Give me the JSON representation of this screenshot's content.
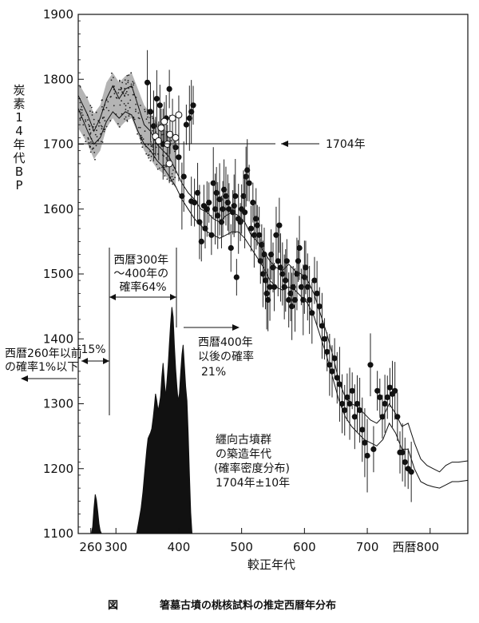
{
  "chart_data": {
    "type": "scatter",
    "caption": {
      "label": "図",
      "text": "箸墓古墳の桃核試料の推定西暦年分布"
    },
    "ylabel": "炭素14年代BP",
    "xlabel": "較正年代",
    "x_ticks": [
      "260",
      "300",
      "400",
      "500",
      "600",
      "700",
      "西暦800"
    ],
    "y_ticks": [
      "1100",
      "1200",
      "1300",
      "1400",
      "1500",
      "1600",
      "1700",
      "1800",
      "1900"
    ],
    "xlim": [
      240,
      860
    ],
    "ylim": [
      1100,
      1900
    ],
    "reference_line": {
      "y": 1704,
      "label": "1704年"
    },
    "annotations": {
      "interval_300_400": [
        "西暦300年",
        "～400年の",
        "確率64%"
      ],
      "before_260": [
        "西暦260年以前",
        "の確率1%以下"
      ],
      "pct_15": "15%",
      "after_400": [
        "西暦400年",
        "以後の確率",
        "21%"
      ],
      "density_title": [
        "纒向古墳群",
        "の築造年代",
        "(確率密度分布)",
        "1704年±10年"
      ]
    },
    "calibration_curve_upper": [
      [
        240,
        1775
      ],
      [
        255,
        1745
      ],
      [
        265,
        1720
      ],
      [
        275,
        1740
      ],
      [
        285,
        1770
      ],
      [
        295,
        1790
      ],
      [
        305,
        1770
      ],
      [
        315,
        1785
      ],
      [
        325,
        1790
      ],
      [
        335,
        1760
      ],
      [
        345,
        1730
      ],
      [
        355,
        1720
      ],
      [
        365,
        1700
      ],
      [
        375,
        1690
      ],
      [
        385,
        1680
      ],
      [
        395,
        1660
      ],
      [
        405,
        1640
      ],
      [
        415,
        1625
      ],
      [
        425,
        1615
      ],
      [
        435,
        1600
      ],
      [
        445,
        1595
      ],
      [
        455,
        1585
      ],
      [
        465,
        1580
      ],
      [
        475,
        1590
      ],
      [
        485,
        1595
      ],
      [
        495,
        1590
      ],
      [
        505,
        1580
      ],
      [
        515,
        1560
      ],
      [
        525,
        1550
      ],
      [
        535,
        1535
      ],
      [
        545,
        1520
      ],
      [
        555,
        1510
      ],
      [
        565,
        1505
      ],
      [
        575,
        1515
      ],
      [
        585,
        1505
      ],
      [
        595,
        1500
      ],
      [
        605,
        1490
      ],
      [
        615,
        1470
      ],
      [
        625,
        1440
      ],
      [
        635,
        1410
      ],
      [
        645,
        1375
      ],
      [
        655,
        1335
      ],
      [
        665,
        1310
      ],
      [
        675,
        1300
      ],
      [
        685,
        1295
      ],
      [
        695,
        1285
      ],
      [
        705,
        1275
      ],
      [
        715,
        1270
      ],
      [
        725,
        1280
      ],
      [
        735,
        1300
      ],
      [
        745,
        1285
      ],
      [
        755,
        1265
      ],
      [
        765,
        1270
      ],
      [
        775,
        1240
      ],
      [
        785,
        1215
      ],
      [
        795,
        1205
      ],
      [
        805,
        1200
      ],
      [
        815,
        1195
      ],
      [
        825,
        1205
      ],
      [
        835,
        1210
      ],
      [
        845,
        1210
      ],
      [
        860,
        1212
      ]
    ],
    "calibration_curve_lower": [
      [
        240,
        1755
      ],
      [
        255,
        1720
      ],
      [
        265,
        1700
      ],
      [
        275,
        1710
      ],
      [
        285,
        1735
      ],
      [
        295,
        1750
      ],
      [
        305,
        1740
      ],
      [
        315,
        1750
      ],
      [
        325,
        1745
      ],
      [
        335,
        1720
      ],
      [
        345,
        1700
      ],
      [
        355,
        1690
      ],
      [
        365,
        1675
      ],
      [
        375,
        1665
      ],
      [
        385,
        1650
      ],
      [
        395,
        1635
      ],
      [
        405,
        1615
      ],
      [
        415,
        1600
      ],
      [
        425,
        1585
      ],
      [
        435,
        1575
      ],
      [
        445,
        1565
      ],
      [
        455,
        1560
      ],
      [
        465,
        1555
      ],
      [
        475,
        1560
      ],
      [
        485,
        1565
      ],
      [
        495,
        1565
      ],
      [
        505,
        1555
      ],
      [
        515,
        1540
      ],
      [
        525,
        1525
      ],
      [
        535,
        1510
      ],
      [
        545,
        1490
      ],
      [
        555,
        1480
      ],
      [
        565,
        1475
      ],
      [
        575,
        1480
      ],
      [
        585,
        1475
      ],
      [
        595,
        1465
      ],
      [
        605,
        1455
      ],
      [
        615,
        1435
      ],
      [
        625,
        1405
      ],
      [
        635,
        1375
      ],
      [
        645,
        1340
      ],
      [
        655,
        1305
      ],
      [
        665,
        1280
      ],
      [
        675,
        1265
      ],
      [
        685,
        1255
      ],
      [
        695,
        1245
      ],
      [
        705,
        1240
      ],
      [
        715,
        1235
      ],
      [
        725,
        1245
      ],
      [
        735,
        1270
      ],
      [
        745,
        1255
      ],
      [
        755,
        1230
      ],
      [
        765,
        1230
      ],
      [
        775,
        1200
      ],
      [
        785,
        1180
      ],
      [
        795,
        1175
      ],
      [
        805,
        1172
      ],
      [
        815,
        1170
      ],
      [
        825,
        1175
      ],
      [
        835,
        1180
      ],
      [
        845,
        1180
      ],
      [
        860,
        1182
      ]
    ],
    "noisy_band_center": [
      [
        240,
        1760
      ],
      [
        255,
        1735
      ],
      [
        265,
        1712
      ],
      [
        275,
        1725
      ],
      [
        285,
        1760
      ],
      [
        295,
        1775
      ],
      [
        305,
        1760
      ],
      [
        315,
        1770
      ],
      [
        325,
        1775
      ],
      [
        335,
        1750
      ],
      [
        345,
        1725
      ],
      [
        355,
        1712
      ],
      [
        365,
        1698
      ],
      [
        375,
        1690
      ],
      [
        385,
        1680
      ],
      [
        395,
        1668
      ]
    ],
    "hollow_points": [
      [
        363,
        1712
      ],
      [
        368,
        1705
      ],
      [
        372,
        1725
      ],
      [
        377,
        1735
      ],
      [
        382,
        1700
      ],
      [
        386,
        1715
      ],
      [
        390,
        1740
      ],
      [
        395,
        1710
      ],
      [
        400,
        1745
      ],
      [
        385,
        1670
      ]
    ],
    "filled_points": [
      [
        350,
        1795
      ],
      [
        355,
        1750
      ],
      [
        360,
        1728
      ],
      [
        365,
        1770
      ],
      [
        370,
        1760
      ],
      [
        375,
        1700
      ],
      [
        380,
        1740
      ],
      [
        385,
        1785
      ],
      [
        395,
        1695
      ],
      [
        400,
        1680
      ],
      [
        405,
        1620
      ],
      [
        408,
        1650
      ],
      [
        412,
        1730
      ],
      [
        417,
        1740
      ],
      [
        420,
        1750
      ],
      [
        423,
        1760
      ],
      [
        420,
        1612
      ],
      [
        425,
        1610
      ],
      [
        430,
        1625
      ],
      [
        433,
        1580
      ],
      [
        436,
        1550
      ],
      [
        440,
        1605
      ],
      [
        442,
        1570
      ],
      [
        445,
        1600
      ],
      [
        448,
        1610
      ],
      [
        452,
        1560
      ],
      [
        455,
        1640
      ],
      [
        458,
        1600
      ],
      [
        460,
        1625
      ],
      [
        462,
        1590
      ],
      [
        465,
        1615
      ],
      [
        468,
        1580
      ],
      [
        470,
        1600
      ],
      [
        472,
        1630
      ],
      [
        475,
        1620
      ],
      [
        478,
        1610
      ],
      [
        480,
        1600
      ],
      [
        483,
        1540
      ],
      [
        486,
        1595
      ],
      [
        488,
        1605
      ],
      [
        490,
        1620
      ],
      [
        492,
        1495
      ],
      [
        495,
        1585
      ],
      [
        498,
        1580
      ],
      [
        500,
        1600
      ],
      [
        503,
        1620
      ],
      [
        505,
        1595
      ],
      [
        507,
        1650
      ],
      [
        509,
        1660
      ],
      [
        512,
        1640
      ],
      [
        515,
        1570
      ],
      [
        518,
        1610
      ],
      [
        520,
        1560
      ],
      [
        523,
        1585
      ],
      [
        525,
        1575
      ],
      [
        528,
        1560
      ],
      [
        530,
        1520
      ],
      [
        532,
        1545
      ],
      [
        534,
        1500
      ],
      [
        536,
        1530
      ],
      [
        538,
        1490
      ],
      [
        540,
        1470
      ],
      [
        542,
        1460
      ],
      [
        545,
        1480
      ],
      [
        547,
        1530
      ],
      [
        550,
        1510
      ],
      [
        552,
        1480
      ],
      [
        555,
        1560
      ],
      [
        558,
        1520
      ],
      [
        560,
        1575
      ],
      [
        562,
        1510
      ],
      [
        565,
        1500
      ],
      [
        568,
        1480
      ],
      [
        570,
        1490
      ],
      [
        572,
        1520
      ],
      [
        575,
        1460
      ],
      [
        578,
        1470
      ],
      [
        580,
        1450
      ],
      [
        582,
        1480
      ],
      [
        585,
        1460
      ],
      [
        588,
        1500
      ],
      [
        590,
        1520
      ],
      [
        592,
        1540
      ],
      [
        595,
        1480
      ],
      [
        598,
        1460
      ],
      [
        600,
        1495
      ],
      [
        602,
        1510
      ],
      [
        605,
        1480
      ],
      [
        608,
        1460
      ],
      [
        612,
        1440
      ],
      [
        616,
        1490
      ],
      [
        620,
        1470
      ],
      [
        624,
        1450
      ],
      [
        628,
        1420
      ],
      [
        632,
        1400
      ],
      [
        636,
        1380
      ],
      [
        640,
        1360
      ],
      [
        644,
        1350
      ],
      [
        648,
        1370
      ],
      [
        652,
        1340
      ],
      [
        656,
        1330
      ],
      [
        660,
        1300
      ],
      [
        664,
        1290
      ],
      [
        668,
        1310
      ],
      [
        672,
        1300
      ],
      [
        676,
        1320
      ],
      [
        680,
        1280
      ],
      [
        684,
        1300
      ],
      [
        688,
        1290
      ],
      [
        692,
        1260
      ],
      [
        696,
        1240
      ],
      [
        700,
        1220
      ],
      [
        705,
        1360
      ],
      [
        710,
        1230
      ],
      [
        716,
        1320
      ],
      [
        720,
        1310
      ],
      [
        724,
        1280
      ],
      [
        728,
        1300
      ],
      [
        732,
        1310
      ],
      [
        736,
        1325
      ],
      [
        740,
        1315
      ],
      [
        744,
        1320
      ],
      [
        748,
        1280
      ],
      [
        752,
        1225
      ],
      [
        756,
        1225
      ],
      [
        760,
        1210
      ],
      [
        765,
        1200
      ],
      [
        770,
        1195
      ]
    ],
    "density_bars": [
      [
        261,
        0
      ],
      [
        263,
        0.05
      ],
      [
        265,
        0.18
      ],
      [
        267,
        0.28
      ],
      [
        269,
        0.24
      ],
      [
        271,
        0.16
      ],
      [
        273,
        0.07
      ],
      [
        275,
        0.02
      ],
      [
        277,
        0
      ],
      [
        290,
        0
      ],
      [
        300,
        0
      ],
      [
        310,
        0
      ],
      [
        320,
        0
      ],
      [
        333,
        0
      ],
      [
        337,
        0.1
      ],
      [
        340,
        0.18
      ],
      [
        343,
        0.3
      ],
      [
        346,
        0.45
      ],
      [
        349,
        0.6
      ],
      [
        351,
        0.68
      ],
      [
        353,
        0.7
      ],
      [
        355,
        0.72
      ],
      [
        357,
        0.75
      ],
      [
        359,
        0.82
      ],
      [
        361,
        0.9
      ],
      [
        363,
        1.0
      ],
      [
        365,
        0.95
      ],
      [
        367,
        0.88
      ],
      [
        369,
        0.92
      ],
      [
        371,
        0.98
      ],
      [
        373,
        1.12
      ],
      [
        375,
        1.22
      ],
      [
        377,
        1.1
      ],
      [
        379,
        0.98
      ],
      [
        381,
        1.08
      ],
      [
        383,
        1.2
      ],
      [
        385,
        1.35
      ],
      [
        387,
        1.5
      ],
      [
        389,
        1.62
      ],
      [
        391,
        1.55
      ],
      [
        393,
        1.35
      ],
      [
        395,
        1.18
      ],
      [
        397,
        1.05
      ],
      [
        399,
        0.95
      ],
      [
        401,
        1.0
      ],
      [
        403,
        1.15
      ],
      [
        405,
        1.28
      ],
      [
        407,
        1.35
      ],
      [
        409,
        1.2
      ],
      [
        411,
        1.05
      ],
      [
        413,
        0.95
      ],
      [
        415,
        0.72
      ],
      [
        417,
        0.42
      ],
      [
        419,
        0.15
      ],
      [
        421,
        0
      ]
    ]
  }
}
